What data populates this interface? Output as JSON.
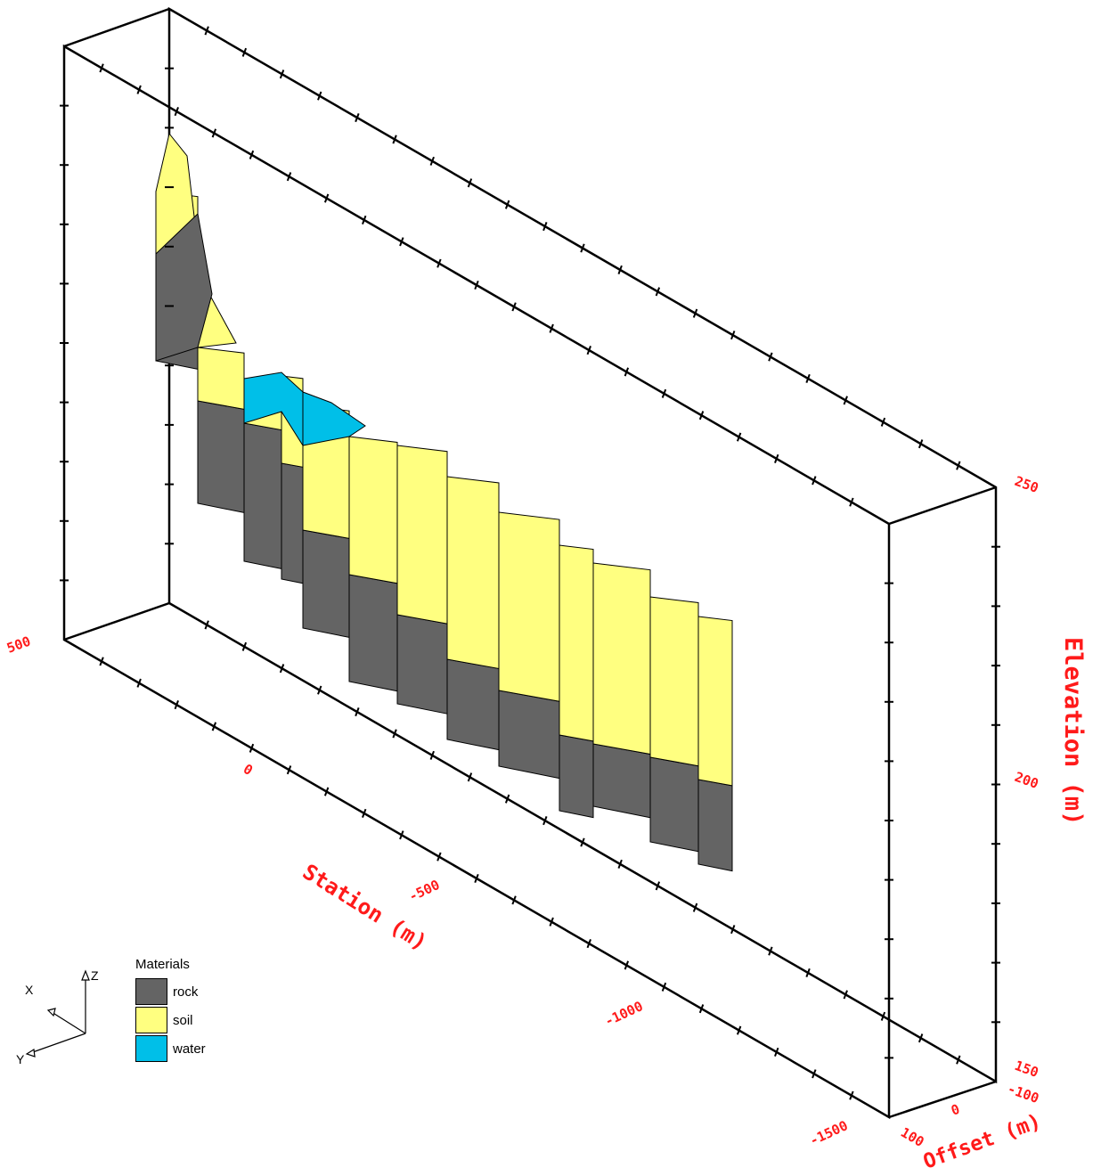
{
  "axes": {
    "elevation": {
      "label": "Elevation (m)",
      "ticks": [
        "250",
        "200",
        "150"
      ]
    },
    "station": {
      "label": "Station (m)",
      "ticks": [
        "500",
        "0",
        "-500",
        "-1000",
        "-1500"
      ]
    },
    "offset": {
      "label": "Offset (m)",
      "ticks": [
        "100",
        "0",
        "-100"
      ]
    }
  },
  "legend": {
    "title": "Materials",
    "items": [
      {
        "label": "rock",
        "color": "#646464"
      },
      {
        "label": "soil",
        "color": "#ffff80"
      },
      {
        "label": "water",
        "color": "#00bfe8"
      }
    ]
  },
  "triad": {
    "x": "X",
    "y": "Y",
    "z": "Z"
  },
  "colors": {
    "frame": "#000000",
    "label": "#ff1a1a"
  }
}
